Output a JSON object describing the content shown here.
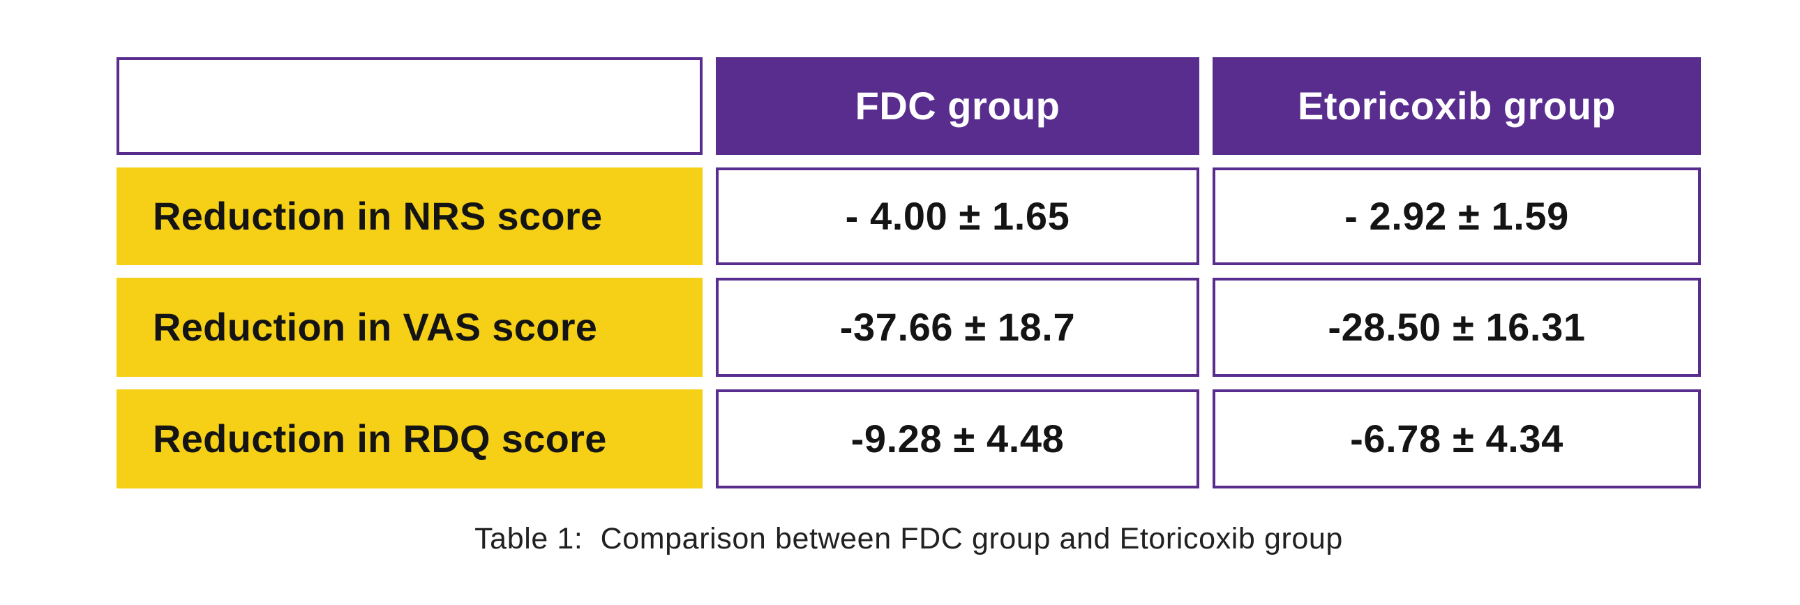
{
  "figure": {
    "caption": "Table 1:  Comparison between FDC group and Etoricoxib group"
  },
  "chart_data": {
    "type": "table",
    "title": "Table 1: Comparison between FDC group and Etoricoxib group",
    "columns": [
      "",
      "FDC group",
      "Etoricoxib group"
    ],
    "row_labels": [
      "Reduction in NRS score",
      "Reduction in VAS score",
      "Reduction in RDQ score"
    ],
    "rows": [
      [
        "Reduction in NRS score",
        "- 4.00 ± 1.65",
        "- 2.92 ± 1.59"
      ],
      [
        "Reduction in VAS score",
        "-37.66 ± 18.7",
        "-28.50 ± 16.31"
      ],
      [
        "Reduction in RDQ score",
        "-9.28 ± 4.48",
        "-6.78 ± 4.34"
      ]
    ],
    "series": [
      {
        "name": "FDC group",
        "mean": [
          -4.0,
          -37.66,
          -9.28
        ],
        "sd": [
          1.65,
          18.7,
          4.48
        ]
      },
      {
        "name": "Etoricoxib group",
        "mean": [
          -2.92,
          -28.5,
          -6.78
        ],
        "sd": [
          1.59,
          16.31,
          4.34
        ]
      }
    ],
    "layout": {
      "legend": "none",
      "grid": "off"
    },
    "colors": {
      "header_fill": "#592D8E",
      "row_label_fill": "#F5D017",
      "cell_border": "#592D8E",
      "header_text": "#FFFFFF",
      "body_text": "#141414",
      "background": "#FFFFFF"
    }
  }
}
